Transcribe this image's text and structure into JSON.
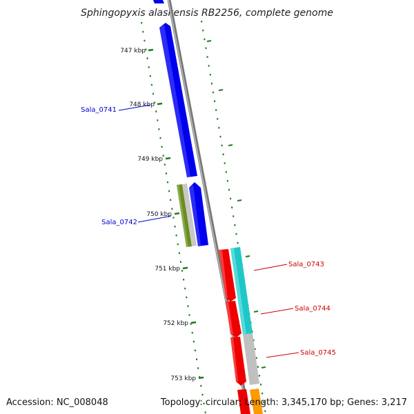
{
  "title": "Sphingopyxis alaskensis RB2256, complete genome",
  "accession": "Accession: NC_008048",
  "topology": "Topology: circular; Length: 3,345,170 bp; Genes: 3,217",
  "colors": {
    "backbone": "#8a8a8a",
    "tick": "#1a7a1a",
    "forward_label": "#0000cc",
    "reverse_label": "#cc0000",
    "blue": "#0000ee",
    "olive": "#6b8e23",
    "gray": "#c0c0c0",
    "red": "#ee0000",
    "cyan": "#1fc7c7",
    "orange": "#ff9900"
  },
  "ticks": [
    {
      "label": "747 kbp"
    },
    {
      "label": "748 kbp"
    },
    {
      "label": "749 kbp"
    },
    {
      "label": "750 kbp"
    },
    {
      "label": "751 kbp"
    },
    {
      "label": "752 kbp"
    },
    {
      "label": "753 kbp"
    }
  ],
  "genes": [
    {
      "label": "Sala_0741",
      "strand": "forward"
    },
    {
      "label": "Sala_0742",
      "strand": "forward"
    },
    {
      "label": "Sala_0743",
      "strand": "reverse"
    },
    {
      "label": "Sala_0744",
      "strand": "reverse"
    },
    {
      "label": "Sala_0745",
      "strand": "reverse"
    }
  ]
}
